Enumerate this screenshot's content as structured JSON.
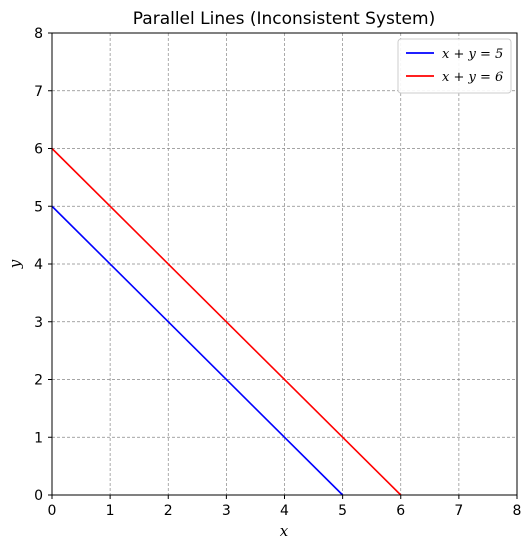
{
  "chart_data": {
    "type": "line",
    "title": "Parallel Lines (Inconsistent System)",
    "xlabel": "x",
    "ylabel": "y",
    "xlim": [
      0,
      8
    ],
    "ylim": [
      0,
      8
    ],
    "xticks": [
      0,
      1,
      2,
      3,
      4,
      5,
      6,
      7,
      8
    ],
    "yticks": [
      0,
      1,
      2,
      3,
      4,
      5,
      6,
      7,
      8
    ],
    "grid": true,
    "legend_position": "top-right",
    "series": [
      {
        "name": "x + y = 5",
        "color": "#0000ff",
        "points": [
          [
            0,
            5
          ],
          [
            5,
            0
          ]
        ]
      },
      {
        "name": "x + y = 6",
        "color": "#ff0000",
        "points": [
          [
            0,
            6
          ],
          [
            6,
            0
          ]
        ]
      }
    ]
  }
}
